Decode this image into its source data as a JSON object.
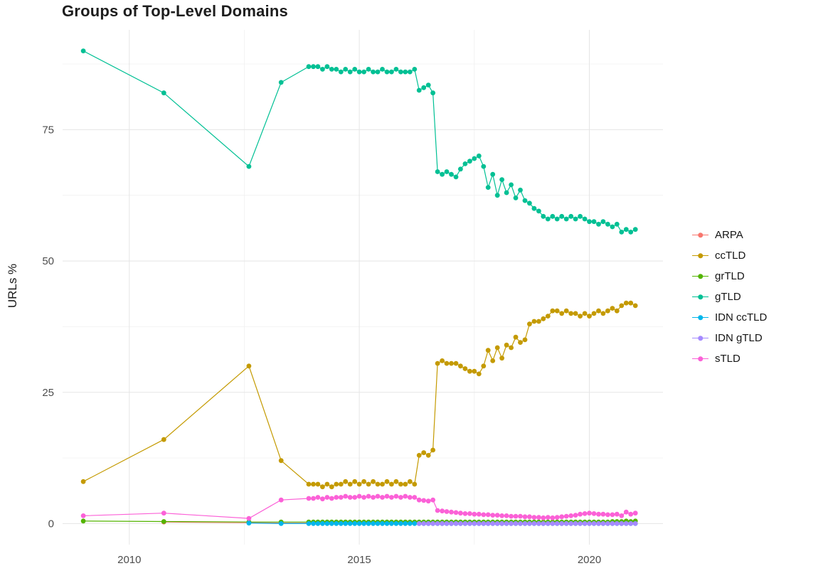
{
  "chart_data": {
    "type": "line",
    "title": "Groups of Top-Level Domains",
    "xlabel": "",
    "ylabel": "URLs %",
    "xlim": [
      2008.55,
      2021.6
    ],
    "ylim": [
      -4,
      94
    ],
    "legend_position": "right",
    "x_ticks": [
      {
        "value": 2010,
        "label": "2010"
      },
      {
        "value": 2015,
        "label": "2015"
      },
      {
        "value": 2020,
        "label": "2020"
      }
    ],
    "y_ticks": [
      {
        "value": 0,
        "label": "0"
      },
      {
        "value": 25,
        "label": "25"
      },
      {
        "value": 50,
        "label": "50"
      },
      {
        "value": 75,
        "label": "75"
      }
    ],
    "grid": {
      "major_color": "#e5e5e5",
      "minor_color": "#f0f0f0",
      "x_minor": [
        2012.5,
        2017.5
      ],
      "y_minor": [
        12.5,
        37.5,
        62.5,
        87.5
      ]
    },
    "x": [
      2009.0,
      2010.75,
      2012.6,
      2013.3,
      2013.9,
      2014.0,
      2014.1,
      2014.2,
      2014.3,
      2014.4,
      2014.5,
      2014.6,
      2014.7,
      2014.8,
      2014.9,
      2015.0,
      2015.1,
      2015.2,
      2015.3,
      2015.4,
      2015.5,
      2015.6,
      2015.7,
      2015.8,
      2015.9,
      2016.0,
      2016.1,
      2016.2,
      2016.3,
      2016.4,
      2016.5,
      2016.6,
      2016.7,
      2016.8,
      2016.9,
      2017.0,
      2017.1,
      2017.2,
      2017.3,
      2017.4,
      2017.5,
      2017.6,
      2017.7,
      2017.8,
      2017.9,
      2018.0,
      2018.1,
      2018.2,
      2018.3,
      2018.4,
      2018.5,
      2018.6,
      2018.7,
      2018.8,
      2018.9,
      2019.0,
      2019.1,
      2019.2,
      2019.3,
      2019.4,
      2019.5,
      2019.6,
      2019.7,
      2019.8,
      2019.9,
      2020.0,
      2020.1,
      2020.2,
      2020.3,
      2020.4,
      2020.5,
      2020.6,
      2020.7,
      2020.8,
      2020.9,
      2021.0
    ],
    "series": [
      {
        "name": "ARPA",
        "color": "#F8766D",
        "values": [
          null,
          0.3,
          0.2,
          0.1,
          0.1,
          0.05,
          0.05,
          0.05,
          0.05,
          0.05,
          0.05,
          0.05,
          0.05,
          0.05,
          0.05,
          0.05,
          0.05,
          0.05,
          0.05,
          0.05,
          0.05,
          0.05,
          0.05,
          0.05,
          0.05,
          0.05,
          0.05,
          0.05,
          0.05,
          0.05,
          0.05,
          0.05,
          0.05,
          0.05,
          0.05,
          0.05,
          0.05,
          0.05,
          0.05,
          0.05,
          0.05,
          0.05,
          0.05,
          0.05,
          0.05,
          0.05,
          0.05,
          0.05,
          0.05,
          0.05,
          0.05,
          0.05,
          0.05,
          0.05,
          0.05,
          0.05,
          0.05,
          0.05,
          0.05,
          0.05,
          0.05,
          0.05,
          0.05,
          0.05,
          0.05,
          0.05,
          0.05,
          0.05,
          0.05,
          0.05,
          0.05,
          0.05,
          0.05,
          0.05,
          0.05,
          0.05
        ]
      },
      {
        "name": "ccTLD",
        "color": "#C49A00",
        "values": [
          8,
          16,
          30,
          12,
          7.5,
          7.5,
          7.5,
          7,
          7.5,
          7,
          7.5,
          7.5,
          8,
          7.5,
          8,
          7.5,
          8,
          7.5,
          8,
          7.5,
          7.5,
          8,
          7.5,
          8,
          7.5,
          7.5,
          8,
          7.5,
          13,
          13.5,
          13,
          14,
          30.5,
          31,
          30.5,
          30.5,
          30.5,
          30,
          29.5,
          29,
          29,
          28.5,
          30,
          33,
          31,
          33.5,
          31.5,
          34,
          33.5,
          35.5,
          34.5,
          35,
          38,
          38.5,
          38.5,
          39,
          39.5,
          40.5,
          40.5,
          40,
          40.5,
          40,
          40,
          39.5,
          40,
          39.5,
          40,
          40.5,
          40,
          40.5,
          41,
          40.5,
          41.5,
          42,
          42,
          41.5
        ]
      },
      {
        "name": "grTLD",
        "color": "#53B400",
        "values": [
          0.5,
          0.4,
          0.3,
          0.3,
          0.3,
          0.3,
          0.3,
          0.3,
          0.3,
          0.3,
          0.3,
          0.3,
          0.3,
          0.3,
          0.3,
          0.3,
          0.3,
          0.3,
          0.3,
          0.3,
          0.3,
          0.3,
          0.3,
          0.3,
          0.3,
          0.3,
          0.3,
          0.3,
          0.3,
          0.3,
          0.3,
          0.3,
          0.3,
          0.3,
          0.3,
          0.3,
          0.3,
          0.3,
          0.3,
          0.3,
          0.3,
          0.3,
          0.3,
          0.3,
          0.3,
          0.3,
          0.3,
          0.3,
          0.3,
          0.3,
          0.3,
          0.3,
          0.3,
          0.3,
          0.3,
          0.3,
          0.3,
          0.3,
          0.3,
          0.3,
          0.3,
          0.3,
          0.3,
          0.3,
          0.3,
          0.3,
          0.3,
          0.3,
          0.3,
          0.3,
          0.4,
          0.4,
          0.4,
          0.5,
          0.4,
          0.5
        ]
      },
      {
        "name": "gTLD",
        "color": "#00C094",
        "values": [
          90,
          82,
          68,
          84,
          87,
          87,
          87,
          86.5,
          87,
          86.5,
          86.5,
          86,
          86.5,
          86,
          86.5,
          86,
          86,
          86.5,
          86,
          86,
          86.5,
          86,
          86,
          86.5,
          86,
          86,
          86,
          86.5,
          82.5,
          83,
          83.5,
          82,
          67,
          66.5,
          67,
          66.5,
          66,
          67.5,
          68.5,
          69,
          69.5,
          70,
          68,
          64,
          66.5,
          62.5,
          65.5,
          63,
          64.5,
          62,
          63.5,
          61.5,
          61,
          60,
          59.5,
          58.5,
          58,
          58.5,
          58,
          58.5,
          58,
          58.5,
          58,
          58.5,
          58,
          57.5,
          57.5,
          57,
          57.5,
          57,
          56.5,
          57,
          55.5,
          56,
          55.5,
          56
        ]
      },
      {
        "name": "IDN ccTLD",
        "color": "#00B6EB",
        "values": [
          null,
          null,
          0.1,
          0,
          0,
          0,
          0,
          0,
          0,
          0,
          0,
          0,
          0,
          0,
          0,
          0,
          0,
          0,
          0,
          0,
          0,
          0,
          0,
          0,
          0,
          0,
          0,
          0,
          0,
          0,
          0,
          0,
          0,
          0,
          0,
          0,
          0,
          0,
          0,
          0,
          0,
          0,
          0,
          0,
          0,
          0,
          0,
          0,
          0,
          0,
          0,
          0,
          0,
          0,
          0,
          0,
          0,
          0,
          0,
          0,
          0,
          0,
          0,
          0,
          0,
          0,
          0,
          0,
          0,
          0,
          0,
          0,
          0,
          0,
          0,
          0
        ]
      },
      {
        "name": "IDN gTLD",
        "color": "#A58AFF",
        "values": [
          null,
          null,
          null,
          null,
          null,
          null,
          null,
          null,
          null,
          null,
          null,
          null,
          null,
          null,
          null,
          null,
          null,
          null,
          null,
          null,
          null,
          null,
          null,
          null,
          null,
          null,
          null,
          null,
          0,
          0,
          0,
          0,
          0,
          0,
          0,
          0,
          0,
          0,
          0,
          0,
          0,
          0,
          0,
          0,
          0,
          0,
          0,
          0,
          0,
          0,
          0,
          0,
          0,
          0,
          0,
          0,
          0,
          0,
          0,
          0,
          0,
          0,
          0,
          0,
          0,
          0,
          0,
          0,
          0,
          0,
          0,
          0,
          0,
          0,
          0,
          0
        ]
      },
      {
        "name": "sTLD",
        "color": "#FB61D7",
        "values": [
          1.5,
          2,
          1,
          4.5,
          4.8,
          4.8,
          5,
          4.7,
          5,
          4.8,
          5,
          5,
          5.2,
          5,
          5,
          5.2,
          5,
          5.2,
          5,
          5.2,
          5,
          5.2,
          5,
          5.2,
          5,
          5.2,
          5,
          5,
          4.5,
          4.4,
          4.3,
          4.5,
          2.5,
          2.4,
          2.3,
          2.2,
          2.1,
          2,
          1.9,
          1.9,
          1.8,
          1.8,
          1.7,
          1.7,
          1.6,
          1.6,
          1.5,
          1.5,
          1.4,
          1.4,
          1.4,
          1.3,
          1.3,
          1.2,
          1.2,
          1.1,
          1.2,
          1.1,
          1.2,
          1.3,
          1.4,
          1.5,
          1.6,
          1.8,
          1.9,
          2,
          1.9,
          1.8,
          1.8,
          1.7,
          1.7,
          1.8,
          1.5,
          2.2,
          1.8,
          2
        ]
      }
    ]
  }
}
